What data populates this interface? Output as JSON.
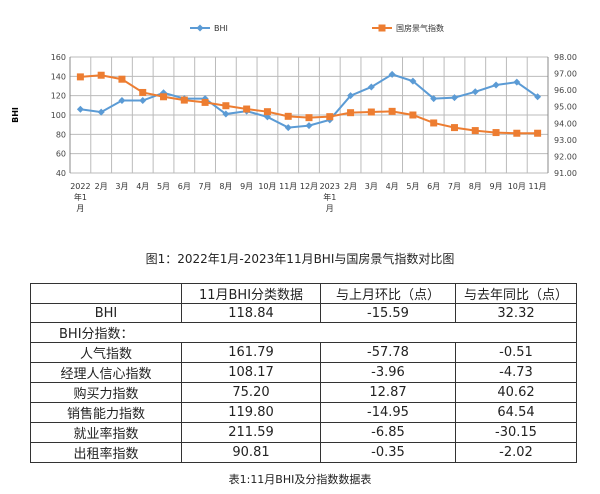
{
  "chart_data": {
    "type": "line",
    "categories": [
      "2022年1月",
      "2月",
      "3月",
      "4月",
      "5月",
      "6月",
      "7月",
      "8月",
      "9月",
      "10月",
      "11月",
      "12月",
      "2023年1月",
      "2月",
      "3月",
      "4月",
      "5月",
      "6月",
      "7月",
      "8月",
      "9月",
      "10月",
      "11月"
    ],
    "ylabel": "BHI",
    "ylim": [
      40,
      160
    ],
    "yticks": [
      "40",
      "60",
      "80",
      "100",
      "120",
      "140",
      "160"
    ],
    "y2lim": [
      91,
      98
    ],
    "y2ticks": [
      "91.00",
      "92.00",
      "93.00",
      "94.00",
      "95.00",
      "96.00",
      "97.00",
      "98.00"
    ],
    "grid": true,
    "legend": "top",
    "series": [
      {
        "name": "BHI",
        "axis": "left",
        "color": "#5b9bd5",
        "marker": "diamond",
        "values": [
          106,
          103,
          115,
          115,
          123,
          117,
          117,
          101,
          104,
          98,
          87,
          89,
          95,
          120,
          129,
          142,
          135,
          117,
          118,
          124,
          131,
          134,
          118.84
        ]
      },
      {
        "name": "国房景气指数",
        "axis": "right",
        "color": "#ed7d31",
        "marker": "square",
        "values": [
          96.8,
          96.9,
          96.66,
          95.86,
          95.6,
          95.4,
          95.26,
          95.06,
          94.86,
          94.7,
          94.42,
          94.34,
          94.4,
          94.64,
          94.68,
          94.72,
          94.5,
          94.02,
          93.74,
          93.56,
          93.44,
          93.4,
          93.4
        ]
      }
    ]
  },
  "figure_caption": "图1：2022年1月-2023年11月BHI与国房景气指数对比图",
  "table": {
    "headers": [
      "",
      "11月BHI分类数据",
      "与上月环比（点）",
      "与去年同比（点）"
    ],
    "bhi_row": [
      "BHI",
      "118.84",
      "-15.59",
      "32.32"
    ],
    "subheader": "BHI分指数：",
    "rows": [
      [
        "人气指数",
        "161.79",
        "-57.78",
        "-0.51"
      ],
      [
        "经理人信心指数",
        "108.17",
        "-3.96",
        "-4.73"
      ],
      [
        "购买力指数",
        "75.20",
        "12.87",
        "40.62"
      ],
      [
        "销售能力指数",
        "119.80",
        "-14.95",
        "64.54"
      ],
      [
        "就业率指数",
        "211.59",
        "-6.85",
        "-30.15"
      ],
      [
        "出租率指数",
        "90.81",
        "-0.35",
        "-2.02"
      ]
    ],
    "caption": "表1:11月BHI及分指数数据表"
  }
}
